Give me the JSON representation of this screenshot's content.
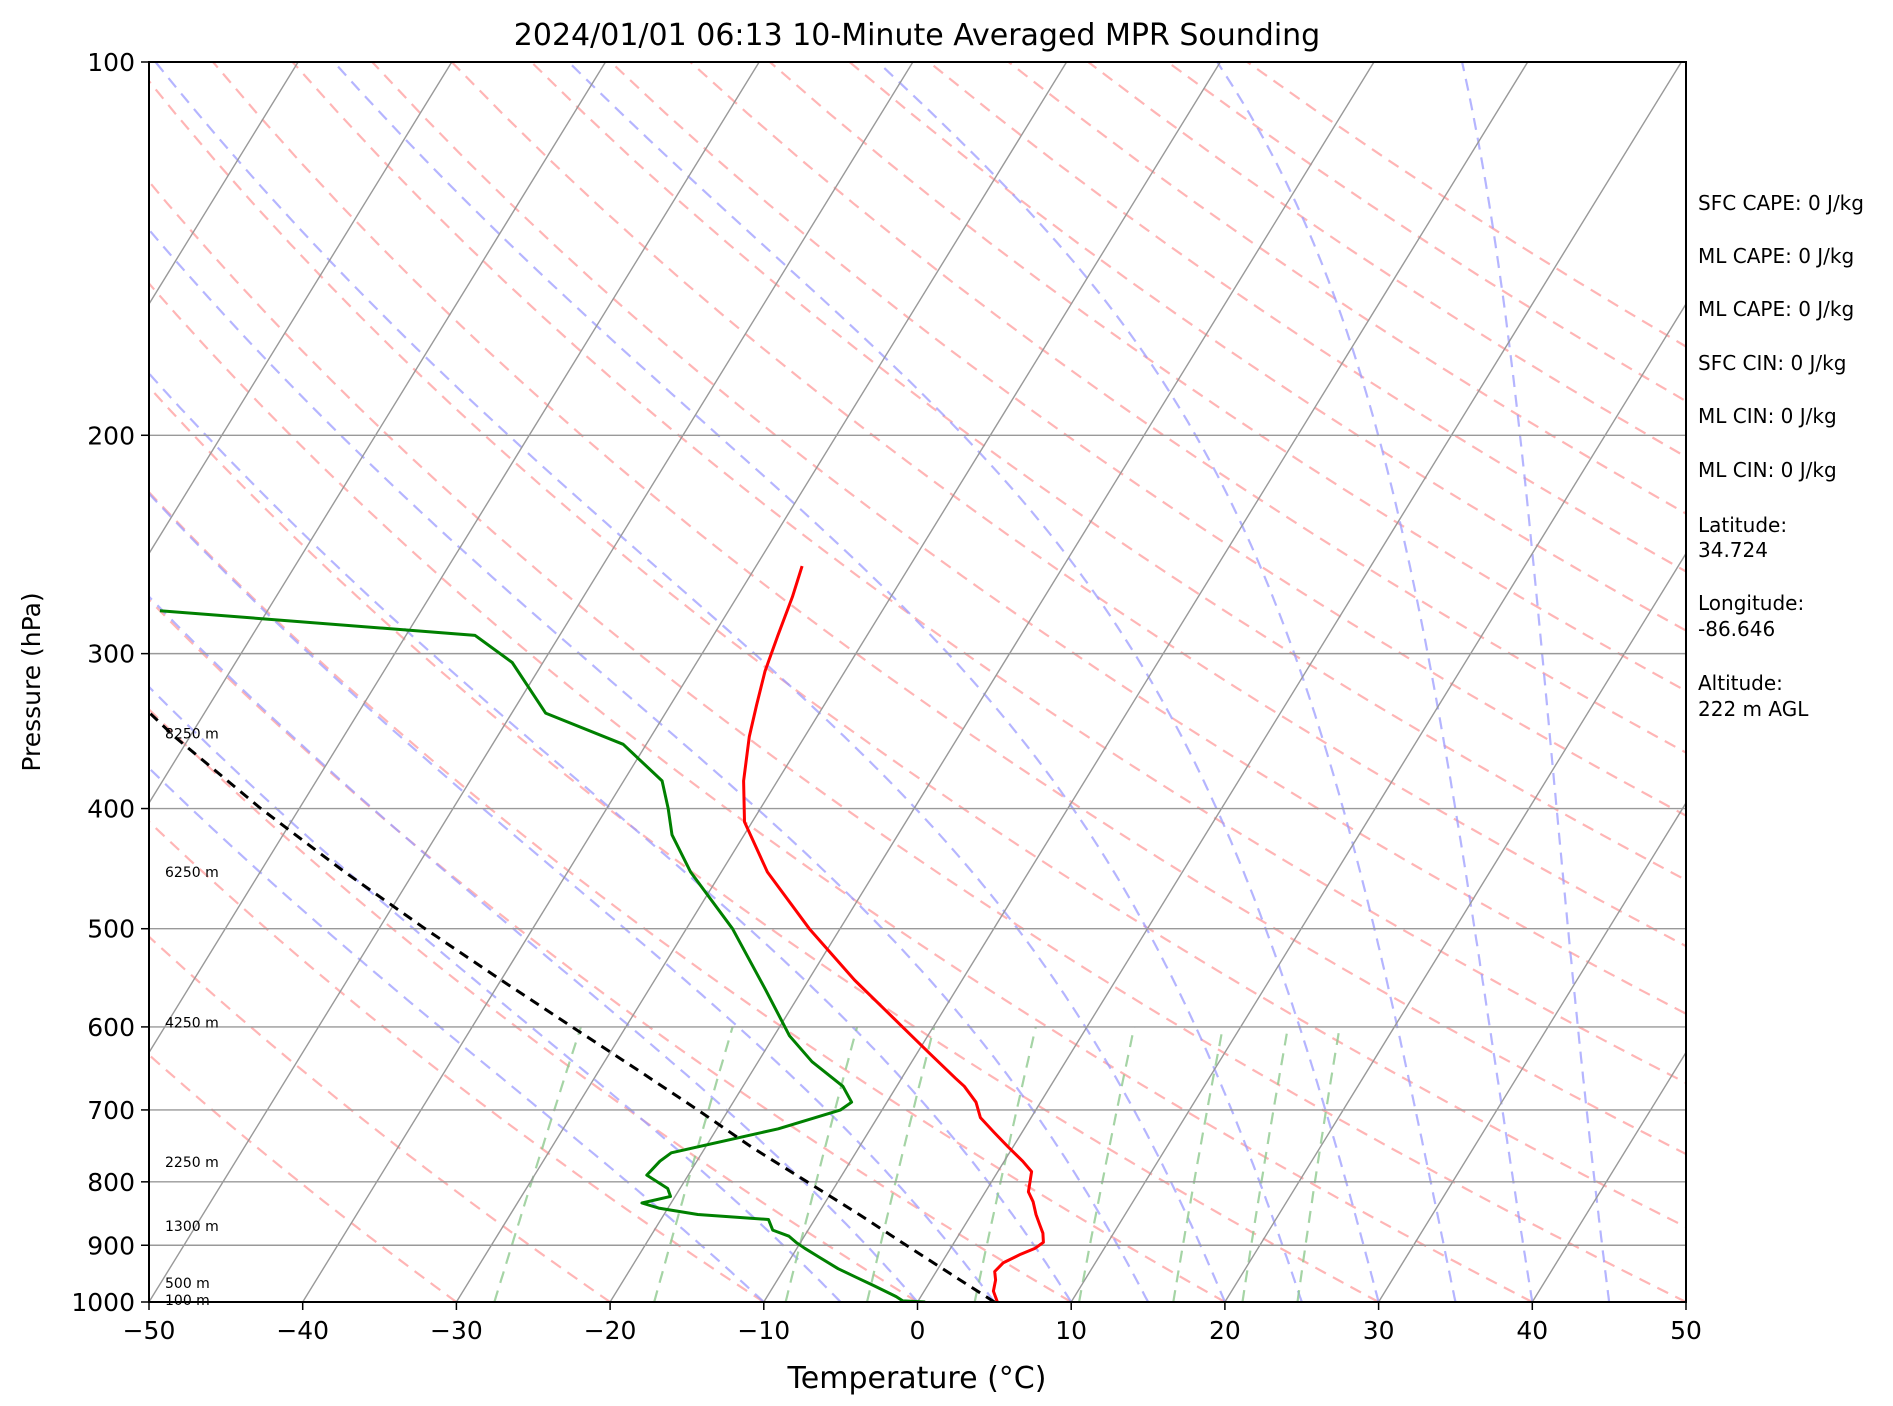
{
  "chart_data": {
    "type": "skew-t",
    "title": "2024/01/01 06:13 10-Minute Averaged MPR Sounding",
    "xlabel": "Temperature (°C)",
    "ylabel": "Pressure (hPa)",
    "xlim": [
      -50,
      50
    ],
    "ylim": [
      1000,
      100
    ],
    "y_scale": "log",
    "x_ticks": [
      "−50",
      "−40",
      "−30",
      "−20",
      "−10",
      "0",
      "10",
      "20",
      "30",
      "40",
      "50"
    ],
    "x_tick_values": [
      -50,
      -40,
      -30,
      -20,
      -10,
      0,
      10,
      20,
      30,
      40,
      50
    ],
    "y_ticks": [
      1000,
      900,
      800,
      700,
      600,
      500,
      400,
      300,
      200,
      100
    ],
    "grid": true,
    "colors": {
      "temperature": "#ff0000",
      "dewpoint": "#008000",
      "parcel": "#000000",
      "dry_adiabats": "#ff9c9c",
      "moist_adiabats": "#9c9cff",
      "mixing_ratio": "#8fc98f",
      "isotherms": "#999999",
      "isobars": "#999999"
    },
    "series": [
      {
        "key": "temperature",
        "pressure": [
          1000,
          980,
          960,
          945,
          930,
          915,
          905,
          895,
          880,
          865,
          850,
          830,
          815,
          800,
          785,
          770,
          750,
          730,
          710,
          690,
          670,
          660,
          630,
          600,
          550,
          500,
          450,
          410,
          380,
          350,
          330,
          310,
          290,
          270,
          255
        ],
        "temperature": [
          5.2,
          4.5,
          4.2,
          3.8,
          4.0,
          4.8,
          5.5,
          5.8,
          5.4,
          4.8,
          4.2,
          3.5,
          2.8,
          2.5,
          2.2,
          1.2,
          -0.3,
          -1.8,
          -3.3,
          -4.2,
          -5.6,
          -6.5,
          -9.2,
          -12.0,
          -17.0,
          -22.0,
          -27.0,
          -30.5,
          -32.2,
          -33.6,
          -34.4,
          -35.2,
          -35.8,
          -36.4,
          -37.0
        ]
      },
      {
        "key": "dewpoint",
        "pressure": [
          1000,
          998,
          990,
          970,
          955,
          940,
          920,
          905,
          895,
          885,
          875,
          858,
          850,
          840,
          832,
          822,
          810,
          790,
          770,
          758,
          725,
          700,
          690,
          670,
          640,
          610,
          560,
          500,
          450,
          420,
          400,
          380,
          355,
          335,
          305,
          290,
          277
        ],
        "temperature": [
          0.5,
          -1.0,
          -1.6,
          -3.5,
          -5.0,
          -6.5,
          -8.2,
          -9.5,
          -10.3,
          -11.0,
          -12.3,
          -13.0,
          -17.8,
          -20.6,
          -21.9,
          -20.3,
          -20.8,
          -22.7,
          -22.4,
          -22.0,
          -16.0,
          -12.7,
          -12.3,
          -13.5,
          -16.5,
          -19.0,
          -22.4,
          -27.0,
          -32.0,
          -34.7,
          -36.0,
          -37.5,
          -41.5,
          -47.8,
          -52.0,
          -55.5,
          -77.0
        ]
      },
      {
        "key": "parcel",
        "pressure": [
          1000,
          950,
          900,
          850,
          800,
          750,
          700,
          650,
          600,
          550,
          500,
          450,
          400,
          350,
          300,
          260
        ],
        "temperature": [
          5.0,
          1.1,
          -3.0,
          -7.3,
          -12.0,
          -17.0,
          -22.0,
          -27.5,
          -33.5,
          -40.0,
          -47.0,
          -54.5,
          -62.5,
          -71.0,
          -80.0,
          -88.5
        ]
      }
    ],
    "height_labels": [
      "8250 m",
      "6250 m",
      "4250 m",
      "2250 m",
      "1300 m",
      "500 m",
      "100 m"
    ],
    "height_label_pressures": [
      348,
      450,
      595,
      771,
      868,
      965,
      996
    ]
  },
  "info": {
    "sfc_cape": "SFC CAPE: 0 J/kg",
    "ml_cape_1": "ML CAPE: 0 J/kg",
    "ml_cape_2": "ML CAPE: 0 J/kg",
    "sfc_cin": "SFC CIN: 0 J/kg",
    "ml_cin_1": "ML CIN: 0 J/kg",
    "ml_cin_2": "ML CIN: 0 J/kg",
    "latitude_label": "Latitude:",
    "latitude_value": "34.724",
    "longitude_label": "Longitude:",
    "longitude_value": "-86.646",
    "altitude_label": "Altitude:",
    "altitude_value": "222 m AGL"
  }
}
